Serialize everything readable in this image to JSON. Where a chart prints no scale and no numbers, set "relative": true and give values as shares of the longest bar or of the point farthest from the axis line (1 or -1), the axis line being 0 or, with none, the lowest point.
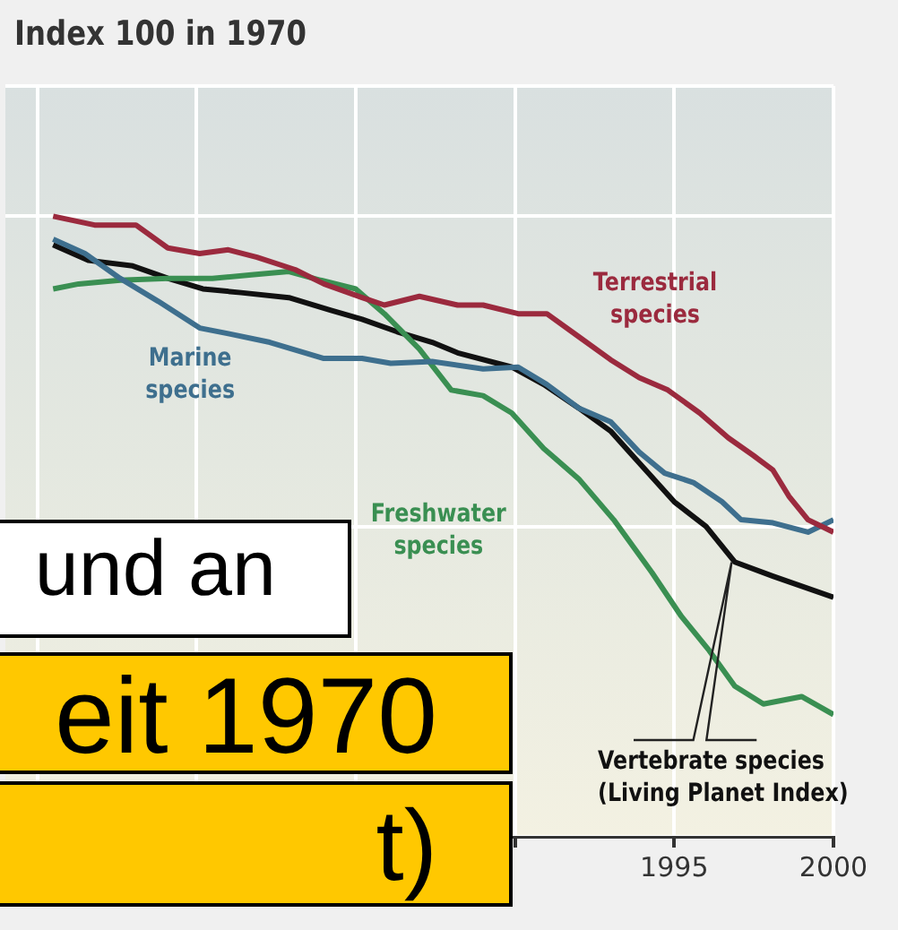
{
  "chart_data": {
    "type": "line",
    "title": "Index 100 in 1970",
    "relative": true,
    "legend": false,
    "grid": true,
    "marker": "none",
    "line_style": "solid",
    "xlim": [
      1974,
      2000
    ],
    "xticks": [
      {
        "value": 1975,
        "label": null
      },
      {
        "value": 1980,
        "label": null
      },
      {
        "value": 1985,
        "label": null
      },
      {
        "value": 1990,
        "label": null
      },
      1995,
      2000
    ],
    "annotations": [
      "und an",
      "eit 1970",
      "t)"
    ],
    "series": [
      {
        "name": "Terrestrial species",
        "color": "#9b2a3e",
        "x": [
          1975.5,
          1976.8,
          1978.1,
          1979.1,
          1980.1,
          1981.0,
          1981.9,
          1983.1,
          1984.0,
          1985.2,
          1985.9,
          1987.0,
          1988.2,
          1989.0,
          1990.1,
          1991.0,
          1992.0,
          1993.0,
          1993.9,
          1994.8,
          1995.8,
          1996.7,
          1997.5,
          1998.1,
          1998.6,
          1999.2,
          2000
        ],
        "values": [
          1.0,
          0.986,
          0.986,
          0.949,
          0.94,
          0.946,
          0.934,
          0.914,
          0.891,
          0.869,
          0.857,
          0.871,
          0.857,
          0.857,
          0.843,
          0.843,
          0.806,
          0.769,
          0.74,
          0.72,
          0.683,
          0.643,
          0.614,
          0.591,
          0.549,
          0.511,
          0.491
        ]
      },
      {
        "name": "Marine species",
        "color": "#3e6f8e",
        "x": [
          1975.5,
          1976.5,
          1977.6,
          1978.8,
          1980.1,
          1981.0,
          1982.3,
          1984.0,
          1985.2,
          1986.1,
          1987.4,
          1989.0,
          1990.1,
          1991.0,
          1992.0,
          1993.0,
          1993.9,
          1994.7,
          1995.6,
          1996.5,
          1997.1,
          1998.1,
          1999.2,
          2000
        ],
        "values": [
          0.963,
          0.94,
          0.9,
          0.863,
          0.82,
          0.811,
          0.797,
          0.771,
          0.771,
          0.763,
          0.766,
          0.754,
          0.757,
          0.729,
          0.691,
          0.669,
          0.62,
          0.586,
          0.571,
          0.54,
          0.511,
          0.506,
          0.491,
          0.511
        ]
      },
      {
        "name": "Freshwater species",
        "color": "#3a8f52",
        "x": [
          1975.5,
          1976.3,
          1977.6,
          1979.1,
          1980.5,
          1981.8,
          1982.9,
          1983.9,
          1985.0,
          1985.9,
          1987.0,
          1988.0,
          1989.0,
          1989.9,
          1990.9,
          1992.0,
          1993.1,
          1994.3,
          1995.2,
          1996.1,
          1996.9,
          1997.8,
          1999.0,
          2000
        ],
        "values": [
          0.883,
          0.891,
          0.897,
          0.9,
          0.9,
          0.906,
          0.911,
          0.897,
          0.883,
          0.843,
          0.786,
          0.72,
          0.711,
          0.683,
          0.626,
          0.577,
          0.511,
          0.426,
          0.357,
          0.3,
          0.243,
          0.214,
          0.226,
          0.197
        ]
      },
      {
        "name": "Vertebrate species (Living Planet Index)",
        "color": "#111111",
        "x": [
          1975.5,
          1976.6,
          1978.0,
          1979.1,
          1980.2,
          1981.4,
          1982.9,
          1984.2,
          1985.2,
          1986.3,
          1987.4,
          1988.2,
          1989.9,
          1990.9,
          1992.0,
          1993.0,
          1993.7,
          1995.0,
          1996.0,
          1996.9,
          1998.1,
          2000
        ],
        "values": [
          0.954,
          0.929,
          0.92,
          0.9,
          0.883,
          0.877,
          0.869,
          0.849,
          0.834,
          0.814,
          0.797,
          0.78,
          0.757,
          0.729,
          0.691,
          0.654,
          0.614,
          0.54,
          0.5,
          0.443,
          0.42,
          0.386
        ]
      }
    ]
  }
}
